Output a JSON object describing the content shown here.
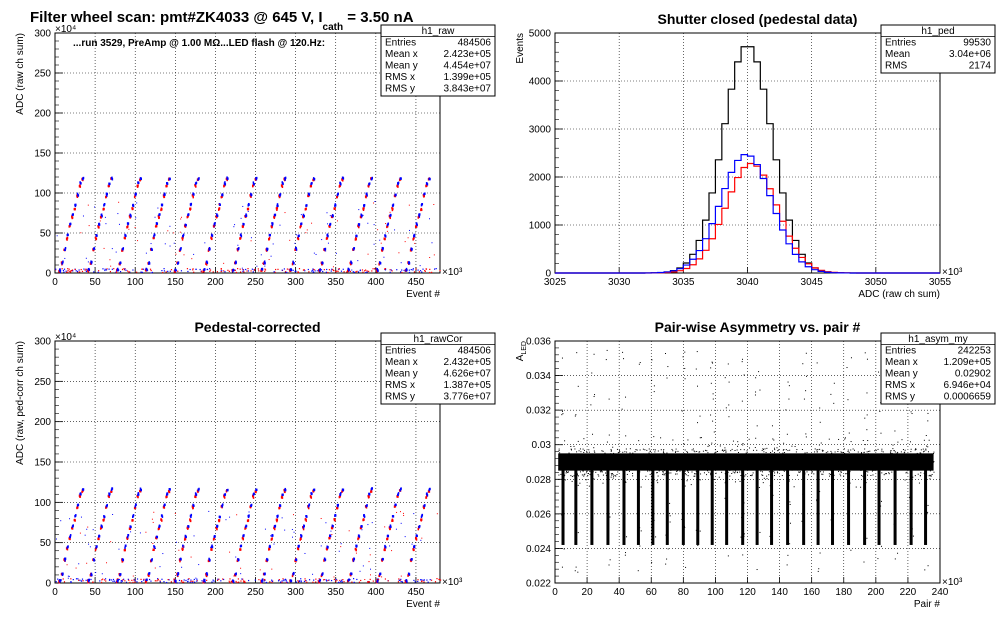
{
  "chart_data": [
    {
      "id": "p1",
      "type": "scatter",
      "title": "Filter wheel scan: pmt#ZK4033 @   645 V, I",
      "title_sub": "cath",
      "title_tail": " = 3.50 nA",
      "annotation": "...run 3529, PreAmp @ 1.00 MΩ...LED flash @  120.Hz:",
      "xlabel": "Event #",
      "ylabel": "ADC (raw ch sum)",
      "x_exp": "×10³",
      "y_exp": "×10⁴",
      "xlim": [
        0,
        480
      ],
      "ylim": [
        0,
        300
      ],
      "xticks": [
        "0",
        "50",
        "100",
        "150",
        "200",
        "250",
        "300",
        "350",
        "400",
        "450"
      ],
      "yticks": [
        "0",
        "50",
        "100",
        "150",
        "200",
        "250",
        "300"
      ],
      "grid": true,
      "series": [
        {
          "color": "#ff0000",
          "levels": [
            3,
            12,
            29,
            43,
            58,
            70,
            80,
            96,
            109,
            117
          ]
        },
        {
          "color": "#0000ff",
          "levels": [
            4,
            13,
            30,
            47,
            61,
            72,
            85,
            98,
            112,
            118
          ]
        }
      ],
      "stats": {
        "name": "h1_raw",
        "rows": [
          [
            "Entries",
            "484506"
          ],
          [
            "Mean x",
            "2.423e+05"
          ],
          [
            "Mean y",
            "4.454e+07"
          ],
          [
            "RMS x",
            "1.399e+05"
          ],
          [
            "RMS y",
            "3.843e+07"
          ]
        ]
      }
    },
    {
      "id": "p2",
      "type": "histogram",
      "title": "Shutter closed (pedestal data)",
      "xlabel": "ADC (raw ch sum)",
      "ylabel": "Events",
      "x_exp": "×10³",
      "xlim": [
        3025,
        3055
      ],
      "ylim": [
        0,
        5500
      ],
      "xticks": [
        "3025",
        "3030",
        "3035",
        "3040",
        "3045",
        "3050",
        "3055"
      ],
      "yticks": [
        "0",
        "1000",
        "2000",
        "3000",
        "4000",
        "5000"
      ],
      "grid": true,
      "bin_width": 0.5,
      "series": [
        {
          "color": "#000000",
          "center": 3040,
          "sigma": 1.9,
          "peak": 5230
        },
        {
          "color": "#ff0000",
          "center": 3040.3,
          "sigma": 2.0,
          "peak": 2510
        },
        {
          "color": "#0000ff",
          "center": 3039.9,
          "sigma": 2.0,
          "peak": 2720
        }
      ],
      "stats": {
        "name": "h1_ped",
        "rows": [
          [
            "Entries",
            "99530"
          ],
          [
            "Mean",
            "3.04e+06"
          ],
          [
            "RMS",
            "2174"
          ]
        ]
      }
    },
    {
      "id": "p3",
      "type": "scatter",
      "title": "Pedestal-corrected",
      "xlabel": "Event #",
      "ylabel": "ADC (raw, ped-corr ch sum)",
      "x_exp": "×10³",
      "y_exp": "×10⁴",
      "xlim": [
        0,
        480
      ],
      "ylim": [
        0,
        300
      ],
      "xticks": [
        "0",
        "50",
        "100",
        "150",
        "200",
        "250",
        "300",
        "350",
        "400",
        "450"
      ],
      "yticks": [
        "0",
        "50",
        "100",
        "150",
        "200",
        "250",
        "300"
      ],
      "grid": true,
      "series": [
        {
          "color": "#ff0000",
          "levels": [
            2,
            10,
            28,
            42,
            55,
            68,
            78,
            94,
            107,
            114
          ]
        },
        {
          "color": "#0000ff",
          "levels": [
            3,
            11,
            29,
            45,
            58,
            70,
            83,
            96,
            110,
            116
          ]
        }
      ],
      "stats": {
        "name": "h1_rawCor",
        "rows": [
          [
            "Entries",
            "484506"
          ],
          [
            "Mean x",
            "2.432e+05"
          ],
          [
            "Mean y",
            "4.626e+07"
          ],
          [
            "RMS x",
            "1.387e+05"
          ],
          [
            "RMS y",
            "3.776e+07"
          ]
        ]
      }
    },
    {
      "id": "p4",
      "type": "scatter",
      "title": "Pair-wise Asymmetry vs. pair #",
      "xlabel": "Pair #",
      "ylabel": "A",
      "ylabel_sub": "LED",
      "x_exp": "×10³",
      "xlim": [
        0,
        240
      ],
      "ylim": [
        0.022,
        0.036
      ],
      "xticks": [
        "0",
        "20",
        "40",
        "60",
        "80",
        "100",
        "120",
        "140",
        "160",
        "180",
        "200",
        "220",
        "240"
      ],
      "yticks": [
        "0.022",
        "0.024",
        "0.026",
        "0.028",
        "0.03",
        "0.032",
        "0.034",
        "0.036"
      ],
      "grid": true,
      "band_center": 0.029,
      "band_halfwidth": 0.0005,
      "spikes_x": [
        5,
        13,
        23,
        33,
        43,
        52,
        61,
        70,
        80,
        89,
        98,
        107,
        117,
        126,
        135,
        145,
        155,
        164,
        173,
        183,
        193,
        202,
        212,
        222,
        231
      ],
      "stats": {
        "name": "h1_asym_my",
        "rows": [
          [
            "Entries",
            "242253"
          ],
          [
            "Mean x",
            "1.209e+05"
          ],
          [
            "Mean y",
            "0.02902"
          ],
          [
            "RMS x",
            "6.946e+04"
          ],
          [
            "RMS y",
            "0.0006659"
          ]
        ]
      }
    }
  ]
}
